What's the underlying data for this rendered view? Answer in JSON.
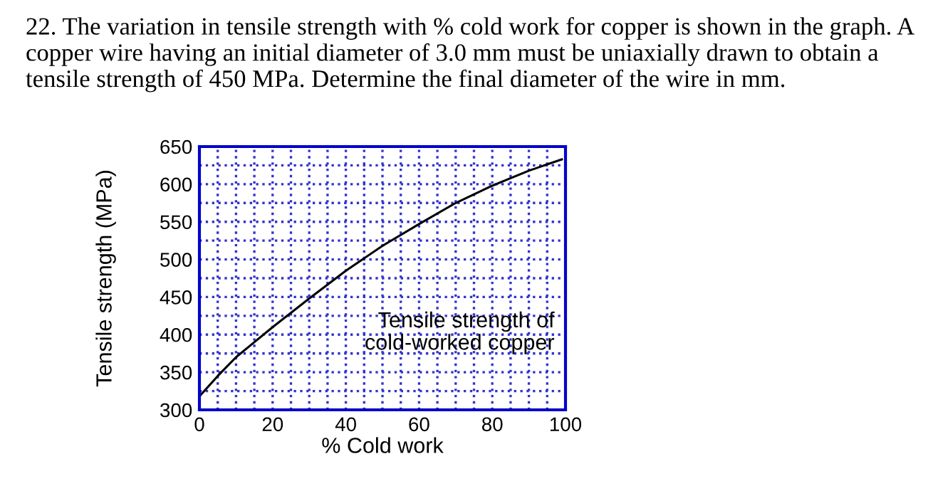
{
  "chart_data": {
    "type": "line",
    "title": "22. The variation in tensile strength with % cold work for copper is shown in the graph. A copper wire having an initial diameter of 3.0 mm must be uniaxially drawn to obtain a tensile strength of 450 MPa. Determine the final diameter of the wire in mm.",
    "xlabel": "% Cold work",
    "ylabel": "Tensile strength (MPa)",
    "annotations": [
      "Tensile strength of",
      "cold-worked copper"
    ],
    "x": [
      0,
      5,
      10,
      15,
      20,
      30,
      40,
      50,
      60,
      70,
      80,
      90,
      99
    ],
    "series": [
      {
        "color": "#000000",
        "values": [
          318,
          345,
          370,
          390,
          410,
          448,
          485,
          518,
          547,
          575,
          598,
          618,
          633
        ]
      }
    ],
    "xlim": [
      0,
      100
    ],
    "ylim": [
      300,
      650
    ],
    "xticks": [
      0,
      {
        "value": 5,
        "label": null
      },
      {
        "value": 10,
        "label": null
      },
      {
        "value": 15,
        "label": null
      },
      20,
      {
        "value": 25,
        "label": null
      },
      {
        "value": 30,
        "label": null
      },
      {
        "value": 35,
        "label": null
      },
      40,
      {
        "value": 45,
        "label": null
      },
      {
        "value": 50,
        "label": null
      },
      {
        "value": 55,
        "label": null
      },
      60,
      {
        "value": 65,
        "label": null
      },
      {
        "value": 70,
        "label": null
      },
      {
        "value": 75,
        "label": null
      },
      80,
      {
        "value": 85,
        "label": null
      },
      {
        "value": 90,
        "label": null
      },
      {
        "value": 95,
        "label": null
      },
      100
    ],
    "yticks": [
      300,
      {
        "value": 325,
        "label": null
      },
      350,
      {
        "value": 375,
        "label": null
      },
      400,
      {
        "value": 425,
        "label": null
      },
      450,
      {
        "value": 475,
        "label": null
      },
      500,
      {
        "value": 525,
        "label": null
      },
      550,
      {
        "value": 575,
        "label": null
      },
      600,
      {
        "value": 625,
        "label": null
      },
      650
    ],
    "grid": true,
    "marker": "none",
    "line_style": "solid",
    "legend": false
  }
}
